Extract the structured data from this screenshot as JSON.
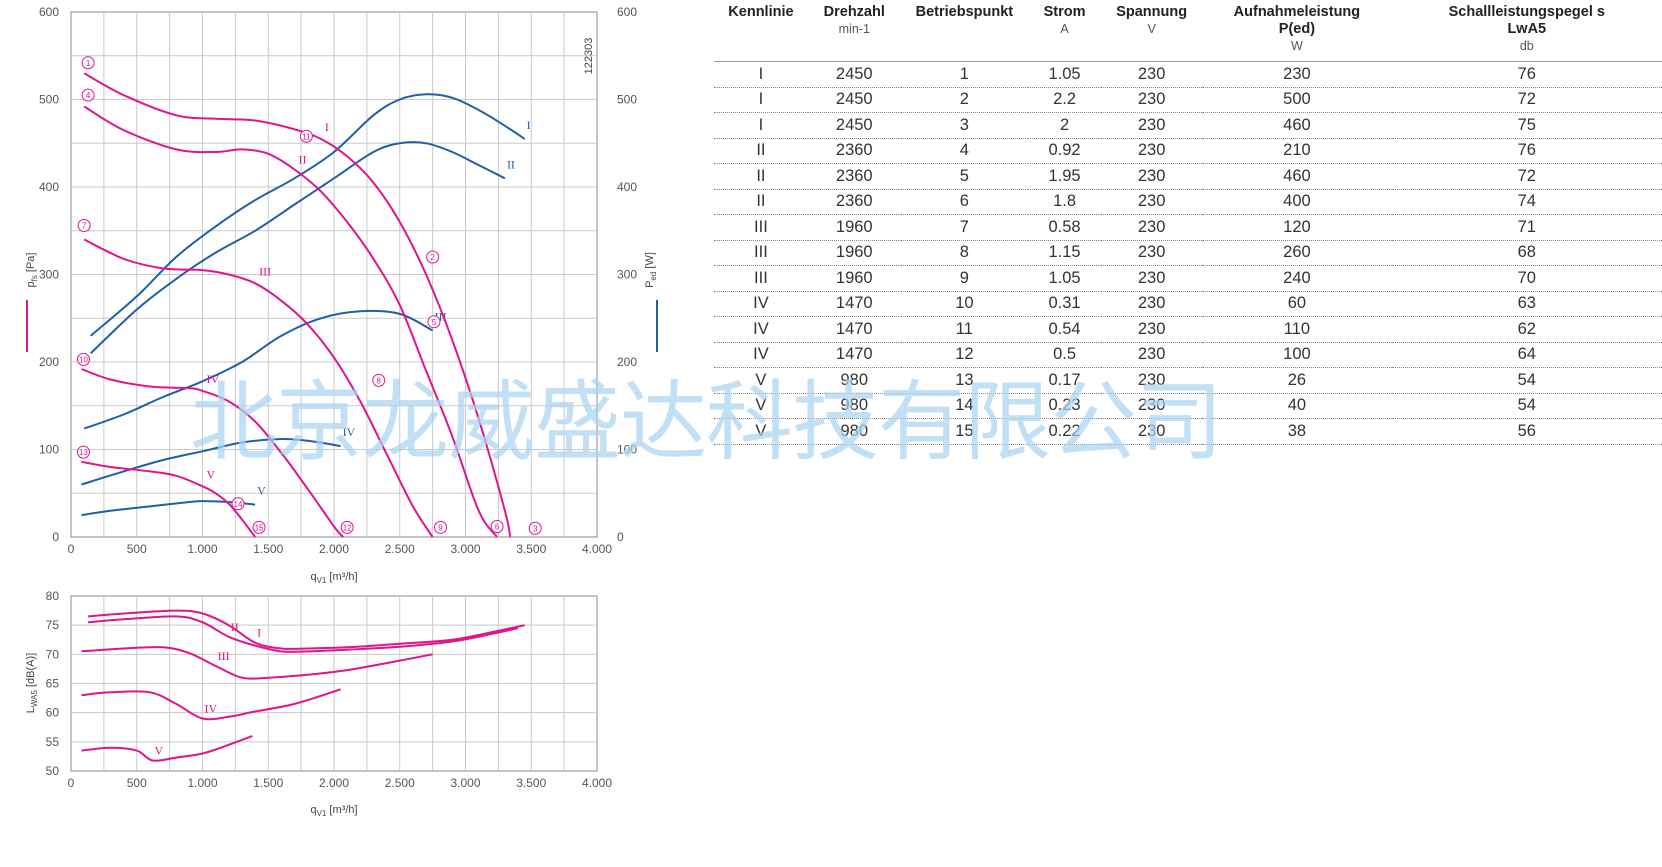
{
  "chart_data": [
    {
      "type": "line",
      "doc_id": "122303",
      "xlabel": "q_V1 [m³/h]",
      "xlim": [
        0,
        4000
      ],
      "x_ticks": [
        "0",
        "500",
        "1.000",
        "1.500",
        "2.000",
        "2.500",
        "3.000",
        "3.500",
        "4.000"
      ],
      "ylabel_left": "p_fs [Pa]",
      "ylabel_right": "P_ed [W]",
      "ylim": [
        0,
        600
      ],
      "y_ticks": [
        "0",
        "100",
        "200",
        "300",
        "400",
        "500",
        "600"
      ],
      "grid": true,
      "pressure_color": "#e0148c",
      "power_color": "#1f5fa8",
      "pressure_series": [
        {
          "name": "I",
          "x": [
            100,
            400,
            800,
            1100,
            1400,
            1700,
            1900,
            2100,
            2300,
            2500,
            2700,
            2900,
            3100,
            3300,
            3340
          ],
          "y": [
            530,
            505,
            482,
            478,
            476,
            466,
            455,
            435,
            405,
            360,
            300,
            225,
            135,
            30,
            0
          ]
        },
        {
          "name": "II",
          "x": [
            100,
            400,
            800,
            1100,
            1300,
            1500,
            1700,
            1900,
            2100,
            2300,
            2500,
            2700,
            2900,
            3100,
            3240
          ],
          "y": [
            492,
            465,
            443,
            440,
            443,
            438,
            420,
            395,
            360,
            318,
            265,
            190,
            115,
            30,
            0
          ]
        },
        {
          "name": "III",
          "x": [
            100,
            400,
            700,
            1000,
            1200,
            1400,
            1600,
            1800,
            2000,
            2200,
            2400,
            2600,
            2750
          ],
          "y": [
            340,
            318,
            307,
            305,
            300,
            290,
            270,
            243,
            205,
            155,
            95,
            35,
            0
          ]
        },
        {
          "name": "IV",
          "x": [
            80,
            300,
            600,
            900,
            1000,
            1200,
            1400,
            1600,
            1800,
            2000,
            2070
          ],
          "y": [
            192,
            180,
            172,
            170,
            167,
            155,
            132,
            96,
            55,
            12,
            0
          ]
        },
        {
          "name": "V",
          "x": [
            80,
            300,
            600,
            800,
            1000,
            1100,
            1200,
            1300,
            1400
          ],
          "y": [
            86,
            80,
            75,
            70,
            58,
            50,
            38,
            20,
            0
          ]
        }
      ],
      "power_series": [
        {
          "name": "I",
          "x": [
            150,
            500,
            800,
            1100,
            1400,
            1700,
            2000,
            2300,
            2500,
            2700,
            2900,
            3100,
            3300,
            3450
          ],
          "y": [
            230,
            275,
            320,
            355,
            385,
            410,
            440,
            482,
            500,
            506,
            502,
            488,
            470,
            455
          ]
        },
        {
          "name": "II",
          "x": [
            150,
            500,
            800,
            1100,
            1400,
            1700,
            2000,
            2300,
            2500,
            2700,
            2900,
            3100,
            3300
          ],
          "y": [
            210,
            260,
            295,
            325,
            350,
            380,
            410,
            440,
            450,
            450,
            440,
            425,
            410
          ]
        },
        {
          "name": "III",
          "x": [
            100,
            400,
            700,
            1000,
            1300,
            1600,
            1900,
            2200,
            2500,
            2750
          ],
          "y": [
            124,
            140,
            160,
            178,
            200,
            230,
            250,
            258,
            255,
            236
          ]
        },
        {
          "name": "IV",
          "x": [
            80,
            400,
            700,
            1000,
            1300,
            1600,
            1800,
            2050
          ],
          "y": [
            60,
            75,
            88,
            98,
            108,
            112,
            110,
            104
          ]
        },
        {
          "name": "V",
          "x": [
            80,
            300,
            600,
            900,
            1000,
            1200,
            1400
          ],
          "y": [
            25,
            30,
            35,
            40,
            41,
            40,
            37
          ]
        }
      ],
      "operating_points": [
        {
          "id": "1",
          "x": 130,
          "y": 542
        },
        {
          "id": "2",
          "x": 2750,
          "y": 320
        },
        {
          "id": "3",
          "x": 3530,
          "y": 10
        },
        {
          "id": "4",
          "x": 130,
          "y": 505
        },
        {
          "id": "5",
          "x": 2760,
          "y": 246
        },
        {
          "id": "6",
          "x": 3240,
          "y": 12
        },
        {
          "id": "7",
          "x": 100,
          "y": 356
        },
        {
          "id": "8",
          "x": 2340,
          "y": 179
        },
        {
          "id": "9",
          "x": 2810,
          "y": 11
        },
        {
          "id": "10",
          "x": 95,
          "y": 203
        },
        {
          "id": "11",
          "x": 1790,
          "y": 458
        },
        {
          "id": "12",
          "x": 2100,
          "y": 11
        },
        {
          "id": "13",
          "x": 95,
          "y": 97
        },
        {
          "id": "14",
          "x": 1270,
          "y": 38
        },
        {
          "id": "15",
          "x": 1430,
          "y": 11
        }
      ]
    },
    {
      "type": "line",
      "xlabel": "q_V1 [m³/h]",
      "xlim": [
        0,
        4000
      ],
      "x_ticks": [
        "0",
        "500",
        "1.000",
        "1.500",
        "2.000",
        "2.500",
        "3.000",
        "3.500",
        "4.000"
      ],
      "ylabel": "L_WA5 [dB(A)]",
      "ylim": [
        50,
        80
      ],
      "y_ticks": [
        "50",
        "55",
        "60",
        "65",
        "70",
        "75",
        "80"
      ],
      "grid": true,
      "color": "#e0148c",
      "series": [
        {
          "name": "I",
          "x": [
            130,
            400,
            800,
            1000,
            1200,
            1400,
            1600,
            1800,
            2100,
            2500,
            2900,
            3200,
            3450
          ],
          "y": [
            76.5,
            77,
            77.5,
            77,
            75,
            72,
            71,
            71,
            71.2,
            71.8,
            72.5,
            73.8,
            75
          ]
        },
        {
          "name": "II",
          "x": [
            130,
            400,
            800,
            1000,
            1200,
            1400,
            1600,
            1800,
            2100,
            2500,
            2900,
            3200,
            3400
          ],
          "y": [
            75.5,
            76,
            76.5,
            75.5,
            73,
            71.5,
            70.5,
            70.5,
            70.8,
            71.3,
            72.2,
            73.5,
            74.5
          ]
        },
        {
          "name": "III",
          "x": [
            80,
            400,
            700,
            900,
            1100,
            1300,
            1500,
            1800,
            2100,
            2400,
            2750
          ],
          "y": [
            70.5,
            71,
            71.2,
            70.2,
            68,
            66,
            66,
            66.5,
            67.3,
            68.5,
            70
          ]
        },
        {
          "name": "IV",
          "x": [
            80,
            300,
            600,
            800,
            1000,
            1200,
            1400,
            1700,
            2050
          ],
          "y": [
            63,
            63.5,
            63.5,
            61.5,
            59,
            59.3,
            60.2,
            61.5,
            64
          ]
        },
        {
          "name": "V",
          "x": [
            80,
            300,
            500,
            620,
            800,
            1000,
            1200,
            1380
          ],
          "y": [
            53.5,
            54,
            53.5,
            51.8,
            52.3,
            53,
            54.5,
            56
          ]
        }
      ]
    }
  ],
  "table": {
    "headers": [
      {
        "label": "Kennlinie",
        "sub": "",
        "unit": ""
      },
      {
        "label": "Drehzahl",
        "sub": "",
        "unit": "min-1"
      },
      {
        "label": "Betriebspunkt",
        "sub": "",
        "unit": ""
      },
      {
        "label": "Strom",
        "sub": "",
        "unit": "A"
      },
      {
        "label": "Spannung",
        "sub": "",
        "unit": "V"
      },
      {
        "label": "Aufnahmeleistung",
        "sub": "P(ed)",
        "unit": "W"
      },
      {
        "label": "Schallleistungspegel s",
        "sub": "LwA5",
        "unit": "db"
      }
    ],
    "rows": [
      [
        "I",
        "2450",
        "1",
        "1.05",
        "230",
        "230",
        "76"
      ],
      [
        "I",
        "2450",
        "2",
        "2.2",
        "230",
        "500",
        "72"
      ],
      [
        "I",
        "2450",
        "3",
        "2",
        "230",
        "460",
        "75"
      ],
      [
        "II",
        "2360",
        "4",
        "0.92",
        "230",
        "210",
        "76"
      ],
      [
        "II",
        "2360",
        "5",
        "1.95",
        "230",
        "460",
        "72"
      ],
      [
        "II",
        "2360",
        "6",
        "1.8",
        "230",
        "400",
        "74"
      ],
      [
        "III",
        "1960",
        "7",
        "0.58",
        "230",
        "120",
        "71"
      ],
      [
        "III",
        "1960",
        "8",
        "1.15",
        "230",
        "260",
        "68"
      ],
      [
        "III",
        "1960",
        "9",
        "1.05",
        "230",
        "240",
        "70"
      ],
      [
        "IV",
        "1470",
        "10",
        "0.31",
        "230",
        "60",
        "63"
      ],
      [
        "IV",
        "1470",
        "11",
        "0.54",
        "230",
        "110",
        "62"
      ],
      [
        "IV",
        "1470",
        "12",
        "0.5",
        "230",
        "100",
        "64"
      ],
      [
        "V",
        "980",
        "13",
        "0.17",
        "230",
        "26",
        "54"
      ],
      [
        "V",
        "980",
        "14",
        "0.23",
        "230",
        "40",
        "54"
      ],
      [
        "V",
        "980",
        "15",
        "0.22",
        "230",
        "38",
        "56"
      ]
    ]
  },
  "watermark": "北京龙威盛达科技有限公司"
}
